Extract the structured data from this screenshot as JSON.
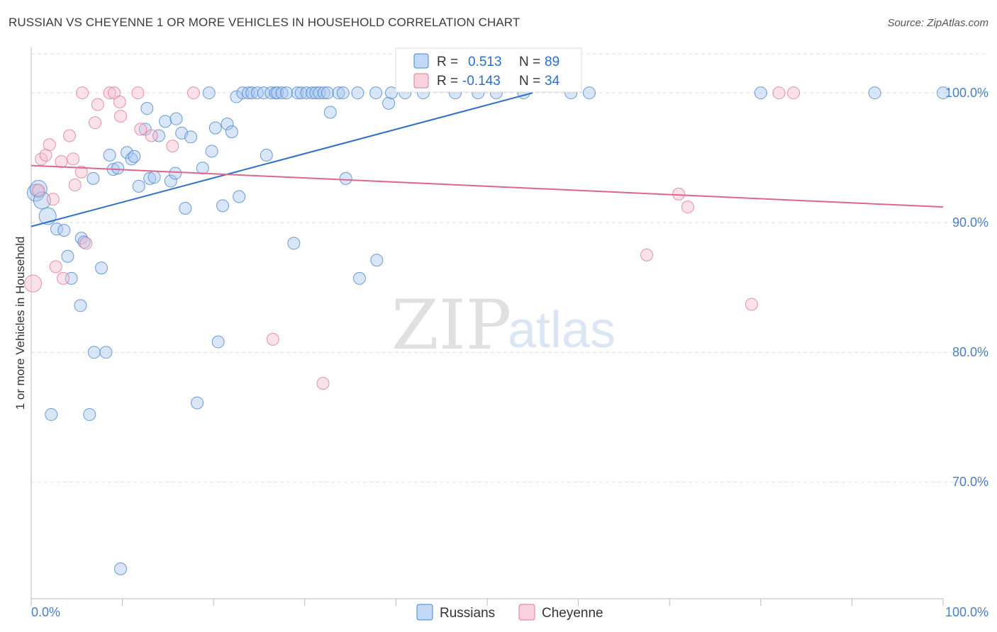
{
  "title": "RUSSIAN VS CHEYENNE 1 OR MORE VEHICLES IN HOUSEHOLD CORRELATION CHART",
  "source": "Source: ZipAtlas.com",
  "watermark": {
    "zip": "ZIP",
    "atlas": "atlas"
  },
  "legend": {
    "r_label": "R =",
    "n_label": "N =",
    "russians": {
      "r": "0.513",
      "n": "89"
    },
    "cheyenne": {
      "r": "-0.143",
      "n": "34"
    }
  },
  "colors": {
    "russians_fill": "#a9c8ef",
    "russians_stroke": "#4a86d0",
    "russians_line": "#2c70c9",
    "cheyenne_fill": "#f6bfd0",
    "cheyenne_stroke": "#e07896",
    "cheyenne_line": "#e0668e",
    "tick_text": "#4a7ec7",
    "grid": "#dddddd"
  },
  "chart_data": {
    "type": "scatter",
    "title": "RUSSIAN VS CHEYENNE 1 OR MORE VEHICLES IN HOUSEHOLD CORRELATION CHART",
    "xlabel": "",
    "ylabel": "1 or more Vehicles in Household",
    "xlim": [
      0,
      100
    ],
    "ylim": [
      61,
      103.5
    ],
    "x_tick_labels": [
      "0.0%",
      "100.0%"
    ],
    "y_ticks": [
      70,
      80,
      90,
      100
    ],
    "y_tick_labels": [
      "70.0%",
      "80.0%",
      "90.0%",
      "100.0%"
    ],
    "grid": true,
    "legend_position": "top-center",
    "series": [
      {
        "name": "Russians",
        "trend": {
          "x": [
            0,
            55
          ],
          "y": [
            89.7,
            100
          ]
        },
        "points": [
          [
            0.5,
            92.3
          ],
          [
            0.8,
            92.6
          ],
          [
            1.2,
            91.7
          ],
          [
            1.8,
            90.5
          ],
          [
            2.8,
            89.5
          ],
          [
            3.6,
            89.4
          ],
          [
            4.0,
            87.4
          ],
          [
            4.4,
            85.7
          ],
          [
            5.5,
            88.8
          ],
          [
            5.8,
            88.5
          ],
          [
            5.4,
            83.6
          ],
          [
            7.7,
            86.5
          ],
          [
            6.9,
            80.0
          ],
          [
            8.2,
            80.0
          ],
          [
            2.2,
            75.2
          ],
          [
            6.4,
            75.2
          ],
          [
            9.8,
            63.3
          ],
          [
            6.8,
            93.4
          ],
          [
            8.6,
            95.2
          ],
          [
            9.0,
            94.1
          ],
          [
            9.5,
            94.2
          ],
          [
            10.5,
            95.4
          ],
          [
            11.0,
            94.9
          ],
          [
            11.3,
            95.1
          ],
          [
            11.8,
            92.8
          ],
          [
            12.5,
            97.2
          ],
          [
            12.7,
            98.8
          ],
          [
            13.0,
            93.4
          ],
          [
            13.5,
            93.5
          ],
          [
            14.0,
            96.7
          ],
          [
            14.7,
            97.8
          ],
          [
            15.3,
            93.2
          ],
          [
            15.8,
            93.8
          ],
          [
            15.9,
            98.0
          ],
          [
            16.5,
            96.9
          ],
          [
            16.9,
            91.1
          ],
          [
            17.5,
            96.6
          ],
          [
            18.2,
            76.1
          ],
          [
            18.8,
            94.2
          ],
          [
            19.5,
            100
          ],
          [
            19.8,
            95.5
          ],
          [
            20.2,
            97.3
          ],
          [
            20.5,
            80.8
          ],
          [
            21.0,
            91.3
          ],
          [
            21.5,
            97.6
          ],
          [
            22.0,
            97.0
          ],
          [
            22.5,
            99.7
          ],
          [
            22.8,
            92.0
          ],
          [
            23.2,
            100
          ],
          [
            23.8,
            100
          ],
          [
            24.2,
            100
          ],
          [
            24.8,
            100
          ],
          [
            25.5,
            100
          ],
          [
            25.8,
            95.2
          ],
          [
            26.3,
            100
          ],
          [
            26.8,
            100
          ],
          [
            27.0,
            100
          ],
          [
            27.5,
            100
          ],
          [
            28.0,
            100
          ],
          [
            28.8,
            88.4
          ],
          [
            29.2,
            100
          ],
          [
            29.6,
            100
          ],
          [
            30.2,
            100
          ],
          [
            30.8,
            100
          ],
          [
            31.2,
            100
          ],
          [
            31.6,
            100
          ],
          [
            32.1,
            100
          ],
          [
            32.5,
            100
          ],
          [
            32.8,
            98.5
          ],
          [
            33.7,
            100
          ],
          [
            34.2,
            100
          ],
          [
            34.5,
            93.4
          ],
          [
            35.8,
            100
          ],
          [
            36.0,
            85.7
          ],
          [
            37.8,
            100
          ],
          [
            37.9,
            87.1
          ],
          [
            39.2,
            99.2
          ],
          [
            39.5,
            100
          ],
          [
            41.0,
            100
          ],
          [
            43.0,
            100
          ],
          [
            46.5,
            100
          ],
          [
            49.0,
            100
          ],
          [
            51.0,
            100
          ],
          [
            54.0,
            100
          ],
          [
            59.2,
            100
          ],
          [
            61.2,
            100
          ],
          [
            80.0,
            100
          ],
          [
            92.5,
            100
          ],
          [
            100.0,
            100
          ]
        ]
      },
      {
        "name": "Cheyenne",
        "trend": {
          "x": [
            0,
            100
          ],
          "y": [
            94.4,
            91.2
          ]
        },
        "points": [
          [
            0.2,
            85.3
          ],
          [
            0.8,
            92.5
          ],
          [
            1.1,
            94.9
          ],
          [
            1.6,
            95.2
          ],
          [
            2.0,
            96.0
          ],
          [
            2.4,
            91.8
          ],
          [
            2.7,
            86.6
          ],
          [
            3.3,
            94.7
          ],
          [
            3.5,
            85.7
          ],
          [
            4.2,
            96.7
          ],
          [
            4.6,
            94.9
          ],
          [
            4.8,
            92.9
          ],
          [
            5.5,
            93.9
          ],
          [
            6.0,
            88.4
          ],
          [
            5.6,
            100
          ],
          [
            7.0,
            97.7
          ],
          [
            7.3,
            99.1
          ],
          [
            8.6,
            100
          ],
          [
            9.1,
            100
          ],
          [
            9.7,
            99.3
          ],
          [
            9.8,
            98.2
          ],
          [
            11.7,
            100
          ],
          [
            12.0,
            97.2
          ],
          [
            13.2,
            96.7
          ],
          [
            15.5,
            95.9
          ],
          [
            17.8,
            100
          ],
          [
            26.5,
            81.0
          ],
          [
            32.0,
            77.6
          ],
          [
            67.5,
            87.5
          ],
          [
            71.0,
            92.2
          ],
          [
            72.0,
            91.2
          ],
          [
            79.0,
            83.7
          ],
          [
            82.0,
            100
          ],
          [
            83.6,
            100
          ]
        ]
      }
    ]
  },
  "bottom_legend": [
    "Russians",
    "Cheyenne"
  ]
}
